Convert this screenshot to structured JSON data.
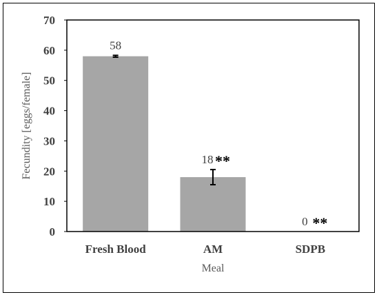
{
  "chart_data": {
    "type": "bar",
    "categories": [
      "Fresh Blood",
      "AM",
      "SDPB"
    ],
    "values": [
      58,
      18,
      0
    ],
    "error": [
      0.3,
      2.5,
      0
    ],
    "data_labels": [
      "58",
      "18",
      "0"
    ],
    "significance": [
      "",
      "**",
      "**"
    ],
    "xlabel": "Meal",
    "ylabel": "Fecundity [eggs/female]",
    "ylim": [
      0,
      70
    ],
    "yticks": [
      0,
      10,
      20,
      30,
      40,
      50,
      60,
      70
    ],
    "grid": false,
    "bar_color": "#a6a6a6",
    "error_bar_color": "#000000"
  }
}
